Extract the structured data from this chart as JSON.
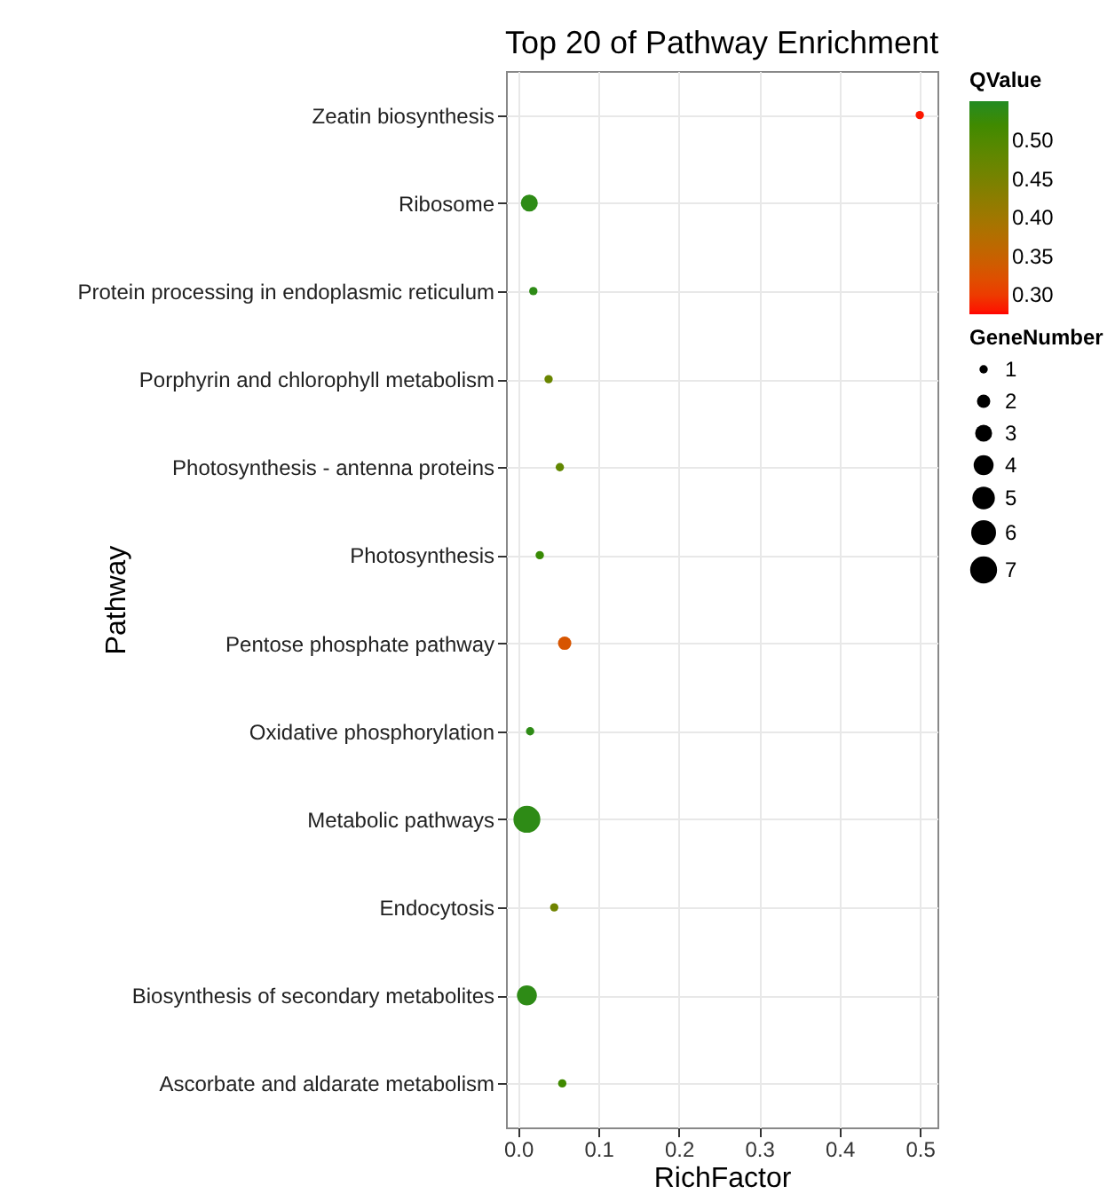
{
  "chart_data": {
    "type": "bubble",
    "orientation": "horizontal",
    "title": "Top 20 of Pathway Enrichment",
    "xlabel": "RichFactor",
    "ylabel": "Pathway",
    "categories": [
      "Zeatin biosynthesis",
      "Ribosome",
      "Protein processing in endoplasmic reticulum",
      "Porphyrin and chlorophyll metabolism",
      "Photosynthesis - antenna proteins",
      "Photosynthesis",
      "Pentose phosphate pathway",
      "Oxidative phosphorylation",
      "Metabolic pathways",
      "Endocytosis",
      "Biosynthesis of secondary metabolites",
      "Ascorbate and aldarate metabolism"
    ],
    "values": [
      0.5,
      0.014,
      0.019,
      0.038,
      0.052,
      0.027,
      0.058,
      0.015,
      0.011,
      0.045,
      0.011,
      0.055
    ],
    "sizes": [
      1,
      3,
      1,
      1,
      1,
      1,
      2,
      1,
      7,
      1,
      4,
      1
    ],
    "cvalues": [
      0.28,
      0.54,
      0.54,
      0.47,
      0.48,
      0.53,
      0.33,
      0.54,
      0.54,
      0.46,
      0.54,
      0.52
    ],
    "clabel": "QValue",
    "clim": [
      0.275,
      0.551
    ],
    "cticks": [
      {
        "value": 0.3,
        "label": "0.30"
      },
      {
        "value": 0.35,
        "label": "0.35"
      },
      {
        "value": 0.4,
        "label": "0.40"
      },
      {
        "value": 0.45,
        "label": "0.45"
      },
      {
        "value": 0.5,
        "label": "0.50"
      }
    ],
    "legend_title": "GeneNumber",
    "size_legend": [
      1,
      2,
      3,
      4,
      5,
      6,
      7
    ],
    "xlim": [
      -0.015,
      0.522
    ],
    "xticks": [
      {
        "value": 0,
        "label": "0.0"
      },
      0.1,
      0.2,
      0.3,
      0.4,
      0.5
    ],
    "grid": true,
    "marker": "circle"
  }
}
